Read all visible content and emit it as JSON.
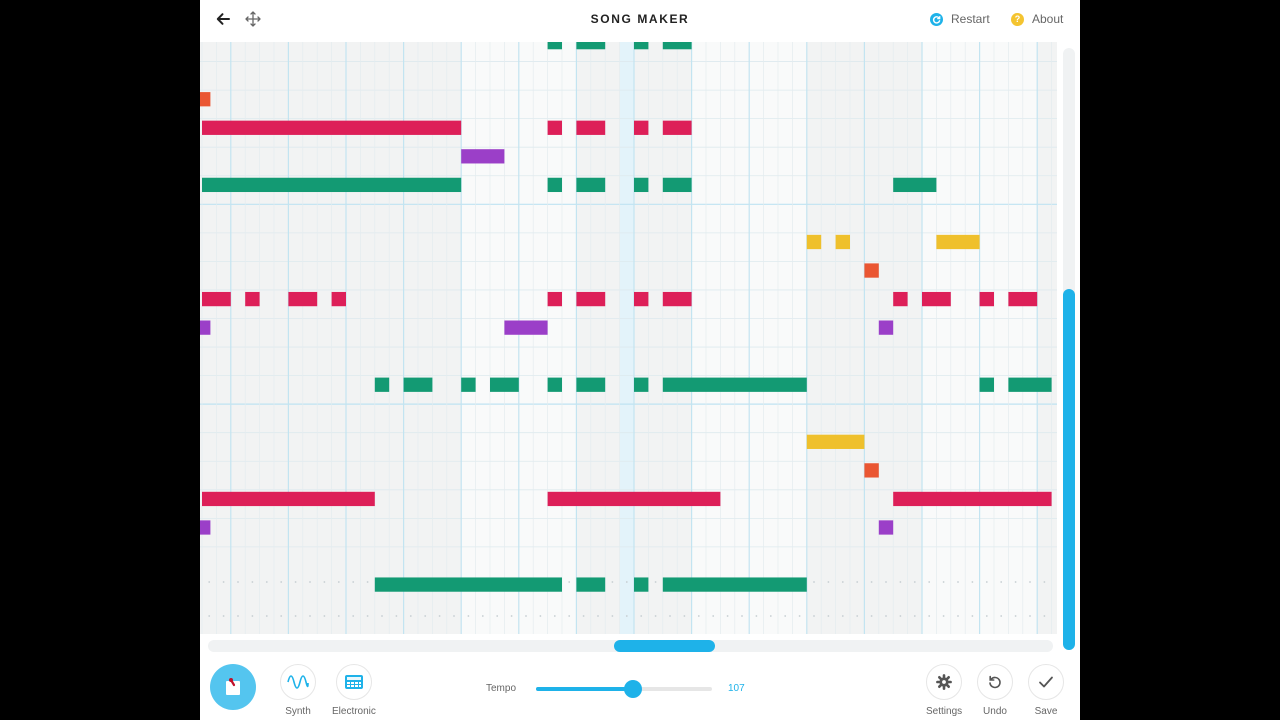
{
  "header": {
    "title": "SONG MAKER",
    "back_icon": "arrow-left-icon",
    "move_icon": "move-arrows-icon",
    "restart_label": "Restart",
    "about_label": "About",
    "about_glyph": "?"
  },
  "colors": {
    "accent": "#1eb2e9",
    "note_green": "#139a73",
    "note_red": "#dd1f58",
    "note_purple": "#9b3fc8",
    "note_yellow": "#efc02c",
    "note_orange": "#ea5632",
    "about_yellow": "#f4c430",
    "grid_bg": "#f2f3f3"
  },
  "grid": {
    "columns": 59,
    "rows": 19,
    "current_column": 29,
    "notes": [
      {
        "row": 0,
        "start": 24,
        "len": 1,
        "color": "green"
      },
      {
        "row": 0,
        "start": 26,
        "len": 2,
        "color": "green"
      },
      {
        "row": 0,
        "start": 30,
        "len": 1,
        "color": "green"
      },
      {
        "row": 0,
        "start": 32,
        "len": 2,
        "color": "green"
      },
      {
        "row": 2,
        "start": -1,
        "len": 1,
        "color": "orange"
      },
      {
        "row": 3,
        "start": 0,
        "len": 18,
        "color": "red"
      },
      {
        "row": 3,
        "start": 24,
        "len": 1,
        "color": "red"
      },
      {
        "row": 3,
        "start": 26,
        "len": 2,
        "color": "red"
      },
      {
        "row": 3,
        "start": 30,
        "len": 1,
        "color": "red"
      },
      {
        "row": 3,
        "start": 32,
        "len": 2,
        "color": "red"
      },
      {
        "row": 4,
        "start": 18,
        "len": 3,
        "color": "purple"
      },
      {
        "row": 5,
        "start": 0,
        "len": 18,
        "color": "green"
      },
      {
        "row": 5,
        "start": 24,
        "len": 1,
        "color": "green"
      },
      {
        "row": 5,
        "start": 26,
        "len": 2,
        "color": "green"
      },
      {
        "row": 5,
        "start": 30,
        "len": 1,
        "color": "green"
      },
      {
        "row": 5,
        "start": 32,
        "len": 2,
        "color": "green"
      },
      {
        "row": 5,
        "start": 48,
        "len": 3,
        "color": "green"
      },
      {
        "row": 7,
        "start": 42,
        "len": 1,
        "color": "yellow"
      },
      {
        "row": 7,
        "start": 44,
        "len": 1,
        "color": "yellow"
      },
      {
        "row": 7,
        "start": 51,
        "len": 3,
        "color": "yellow"
      },
      {
        "row": 8,
        "start": 46,
        "len": 1,
        "color": "orange"
      },
      {
        "row": 9,
        "start": 0,
        "len": 2,
        "color": "red"
      },
      {
        "row": 9,
        "start": 3,
        "len": 1,
        "color": "red"
      },
      {
        "row": 9,
        "start": 6,
        "len": 2,
        "color": "red"
      },
      {
        "row": 9,
        "start": 9,
        "len": 1,
        "color": "red"
      },
      {
        "row": 9,
        "start": 24,
        "len": 1,
        "color": "red"
      },
      {
        "row": 9,
        "start": 26,
        "len": 2,
        "color": "red"
      },
      {
        "row": 9,
        "start": 30,
        "len": 1,
        "color": "red"
      },
      {
        "row": 9,
        "start": 32,
        "len": 2,
        "color": "red"
      },
      {
        "row": 9,
        "start": 48,
        "len": 1,
        "color": "red"
      },
      {
        "row": 9,
        "start": 50,
        "len": 2,
        "color": "red"
      },
      {
        "row": 9,
        "start": 54,
        "len": 1,
        "color": "red"
      },
      {
        "row": 9,
        "start": 56,
        "len": 2,
        "color": "red"
      },
      {
        "row": 10,
        "start": -1,
        "len": 1,
        "color": "purple"
      },
      {
        "row": 10,
        "start": 21,
        "len": 3,
        "color": "purple"
      },
      {
        "row": 10,
        "start": 47,
        "len": 1,
        "color": "purple"
      },
      {
        "row": 12,
        "start": 12,
        "len": 1,
        "color": "green"
      },
      {
        "row": 12,
        "start": 14,
        "len": 2,
        "color": "green"
      },
      {
        "row": 12,
        "start": 18,
        "len": 1,
        "color": "green"
      },
      {
        "row": 12,
        "start": 20,
        "len": 2,
        "color": "green"
      },
      {
        "row": 12,
        "start": 24,
        "len": 1,
        "color": "green"
      },
      {
        "row": 12,
        "start": 26,
        "len": 2,
        "color": "green"
      },
      {
        "row": 12,
        "start": 30,
        "len": 1,
        "color": "green"
      },
      {
        "row": 12,
        "start": 32,
        "len": 10,
        "color": "green"
      },
      {
        "row": 12,
        "start": 54,
        "len": 1,
        "color": "green"
      },
      {
        "row": 12,
        "start": 56,
        "len": 3,
        "color": "green"
      },
      {
        "row": 14,
        "start": 42,
        "len": 4,
        "color": "yellow"
      },
      {
        "row": 15,
        "start": 46,
        "len": 1,
        "color": "orange"
      },
      {
        "row": 16,
        "start": 0,
        "len": 12,
        "color": "red"
      },
      {
        "row": 16,
        "start": 24,
        "len": 12,
        "color": "red"
      },
      {
        "row": 16,
        "start": 48,
        "len": 11,
        "color": "red"
      },
      {
        "row": 17,
        "start": -1,
        "len": 1,
        "color": "purple"
      },
      {
        "row": 17,
        "start": 47,
        "len": 1,
        "color": "purple"
      },
      {
        "row": 19,
        "start": 12,
        "len": 13,
        "color": "green"
      },
      {
        "row": 19,
        "start": 26,
        "len": 2,
        "color": "green"
      },
      {
        "row": 19,
        "start": 30,
        "len": 1,
        "color": "green"
      },
      {
        "row": 19,
        "start": 32,
        "len": 10,
        "color": "green"
      }
    ]
  },
  "scroll": {
    "vertical": {
      "position": 0.4,
      "size": 0.6
    },
    "horizontal": {
      "position": 0.48,
      "size": 0.12
    }
  },
  "toolbar": {
    "instrument_icon": "marimba-icon",
    "synth_label": "Synth",
    "synth_icon": "waveform-icon",
    "electronic_label": "Electronic",
    "electronic_icon": "drum-machine-icon",
    "tempo_label": "Tempo",
    "tempo_value": "107",
    "tempo_fraction": 0.55,
    "settings_label": "Settings",
    "settings_icon": "gear-icon",
    "undo_label": "Undo",
    "undo_icon": "undo-icon",
    "save_label": "Save",
    "save_icon": "check-icon"
  }
}
